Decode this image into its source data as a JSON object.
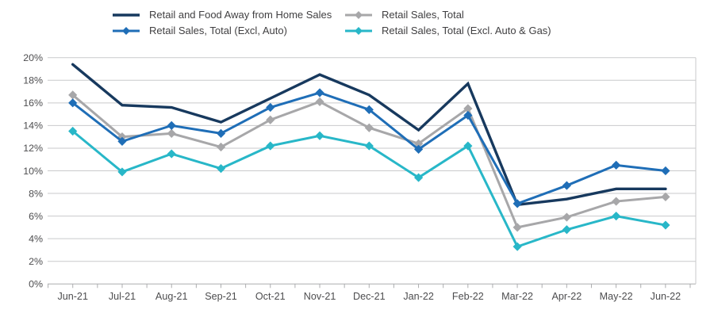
{
  "chart_data": {
    "type": "line",
    "title": "",
    "categories": [
      "Jun-21",
      "Jul-21",
      "Aug-21",
      "Sep-21",
      "Oct-21",
      "Nov-21",
      "Dec-21",
      "Jan-22",
      "Feb-22",
      "Mar-22",
      "Apr-22",
      "May-22",
      "Jun-22"
    ],
    "y_axis": {
      "min": 0,
      "max": 20,
      "step": 2,
      "format": "percent"
    },
    "y_tick_labels": [
      "0%",
      "2%",
      "4%",
      "6%",
      "8%",
      "10%",
      "12%",
      "14%",
      "16%",
      "18%",
      "20%"
    ],
    "grid": true,
    "legend_position": "top",
    "series": [
      {
        "name": "Retail and Food Away from Home Sales",
        "color": "#17395E",
        "marker": "none",
        "line_width": 3.4,
        "values": [
          19.4,
          15.8,
          15.6,
          14.3,
          16.4,
          18.5,
          16.7,
          13.6,
          17.7,
          7.0,
          7.5,
          8.4,
          8.4
        ]
      },
      {
        "name": "Retail Sales, Total",
        "color": "#A7A7A9",
        "marker": "diamond",
        "line_width": 3,
        "values": [
          16.7,
          13.0,
          13.3,
          12.1,
          14.5,
          16.1,
          13.8,
          12.4,
          15.5,
          5.0,
          5.9,
          7.3,
          7.7
        ]
      },
      {
        "name": "Retail Sales, Total (Excl, Auto)",
        "color": "#1F6EB7",
        "marker": "diamond",
        "line_width": 3,
        "values": [
          16.0,
          12.6,
          14.0,
          13.3,
          15.6,
          16.9,
          15.4,
          11.9,
          14.9,
          7.1,
          8.7,
          10.5,
          10.0
        ]
      },
      {
        "name": "Retail Sales, Total (Excl. Auto & Gas)",
        "color": "#28B7C8",
        "marker": "diamond",
        "line_width": 3,
        "values": [
          13.5,
          9.9,
          11.5,
          10.2,
          12.2,
          13.1,
          12.2,
          9.4,
          12.2,
          3.3,
          4.8,
          6.0,
          5.2
        ]
      }
    ],
    "legend_order": [
      0,
      1,
      2,
      3
    ],
    "draw_order": [
      1,
      3,
      0,
      2
    ]
  },
  "style": {
    "gridline_color": "#C9CACB",
    "axis_line_color": "#ACADAF",
    "axis_text_color": "#4D4D4F",
    "legend_text_color": "#414042",
    "background": "#FFFFFF"
  }
}
